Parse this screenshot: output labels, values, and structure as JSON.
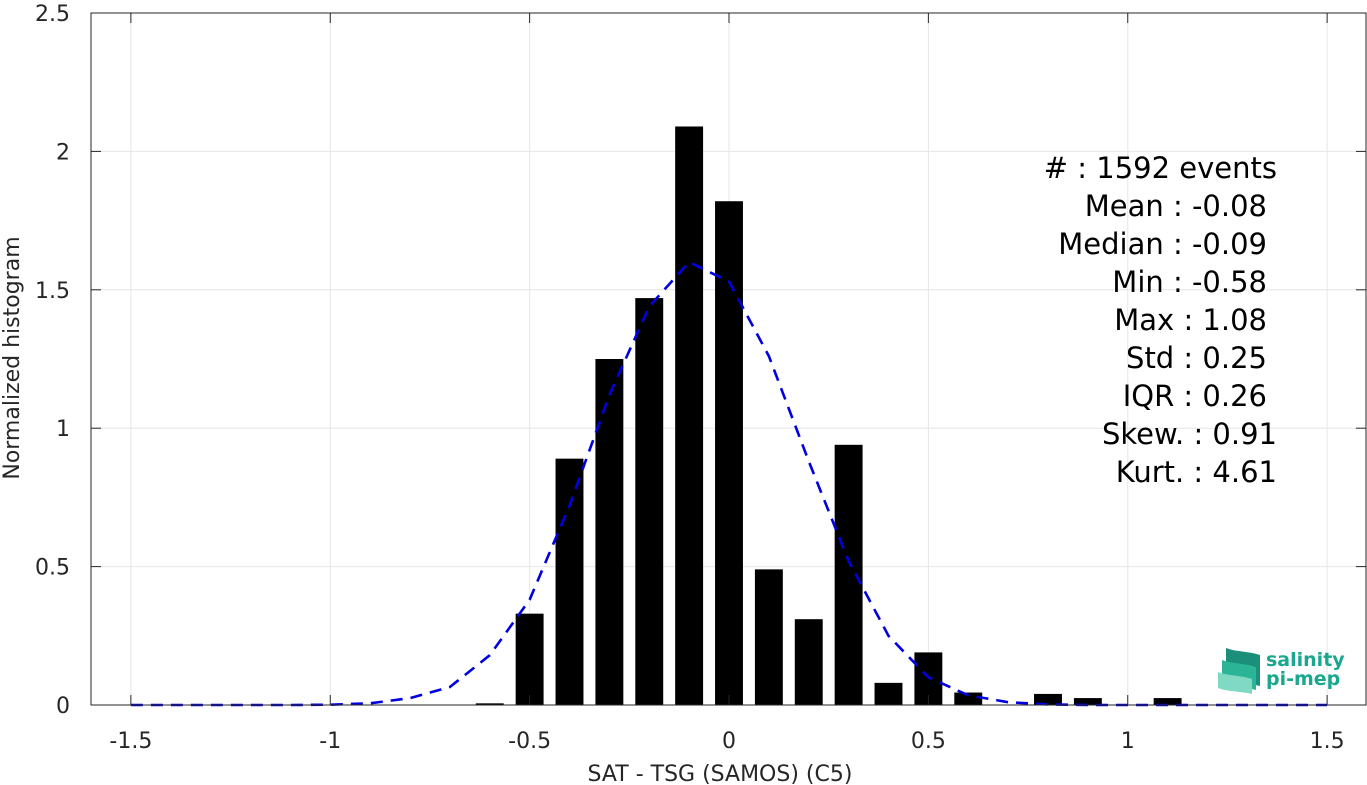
{
  "chart_data": {
    "type": "bar",
    "xlabel": "SAT - TSG (SAMOS) (C5)",
    "ylabel": "Normalized histogram",
    "xlim": [
      -1.6,
      1.6
    ],
    "ylim": [
      0,
      2.5
    ],
    "xticks": [
      -1.5,
      -1,
      -0.5,
      0,
      0.5,
      1,
      1.5
    ],
    "xtick_labels": [
      "-1.5",
      "-1",
      "-0.5",
      "0",
      "0.5",
      "1",
      "1.5"
    ],
    "yticks": [
      0,
      0.5,
      1,
      1.5,
      2,
      2.5
    ],
    "ytick_labels": [
      "0",
      "0.5",
      "1",
      "1.5",
      "2",
      "2.5"
    ],
    "grid": true,
    "bar_color": "#000000",
    "bar_width": 0.07,
    "bars": [
      {
        "x": -0.6,
        "y": 0.006
      },
      {
        "x": -0.5,
        "y": 0.33
      },
      {
        "x": -0.4,
        "y": 0.89
      },
      {
        "x": -0.3,
        "y": 1.25
      },
      {
        "x": -0.2,
        "y": 1.47
      },
      {
        "x": -0.1,
        "y": 2.09
      },
      {
        "x": 0.0,
        "y": 1.82
      },
      {
        "x": 0.1,
        "y": 0.49
      },
      {
        "x": 0.2,
        "y": 0.31
      },
      {
        "x": 0.3,
        "y": 0.94
      },
      {
        "x": 0.4,
        "y": 0.08
      },
      {
        "x": 0.5,
        "y": 0.19
      },
      {
        "x": 0.6,
        "y": 0.045
      },
      {
        "x": 0.8,
        "y": 0.04
      },
      {
        "x": 0.9,
        "y": 0.025
      },
      {
        "x": 1.1,
        "y": 0.025
      }
    ],
    "fit_curve": {
      "color": "#0000e0",
      "style": "dashed",
      "x": [
        -1.5,
        -1.4,
        -1.3,
        -1.2,
        -1.1,
        -1.0,
        -0.9,
        -0.8,
        -0.7,
        -0.6,
        -0.5,
        -0.4,
        -0.3,
        -0.2,
        -0.1,
        0.0,
        0.1,
        0.2,
        0.3,
        0.4,
        0.5,
        0.6,
        0.7,
        0.8,
        0.9,
        1.0,
        1.1,
        1.2,
        1.3,
        1.4,
        1.5
      ],
      "y": [
        0,
        0,
        0,
        0,
        0,
        0.001,
        0.006,
        0.025,
        0.065,
        0.18,
        0.38,
        0.72,
        1.12,
        1.44,
        1.6,
        1.53,
        1.26,
        0.88,
        0.52,
        0.25,
        0.1,
        0.035,
        0.01,
        0.002,
        0,
        0,
        0,
        0,
        0,
        0,
        0
      ]
    },
    "stats": [
      "#  : 1592 events",
      "Mean : -0.08",
      "Median : -0.09",
      "Min : -0.58",
      "Max : 1.08",
      "Std : 0.25",
      "IQR : 0.26",
      "Skew. : 0.91",
      "Kurt. : 4.61"
    ]
  },
  "logo": {
    "line1": "salinity",
    "line2": "pi-mep"
  }
}
